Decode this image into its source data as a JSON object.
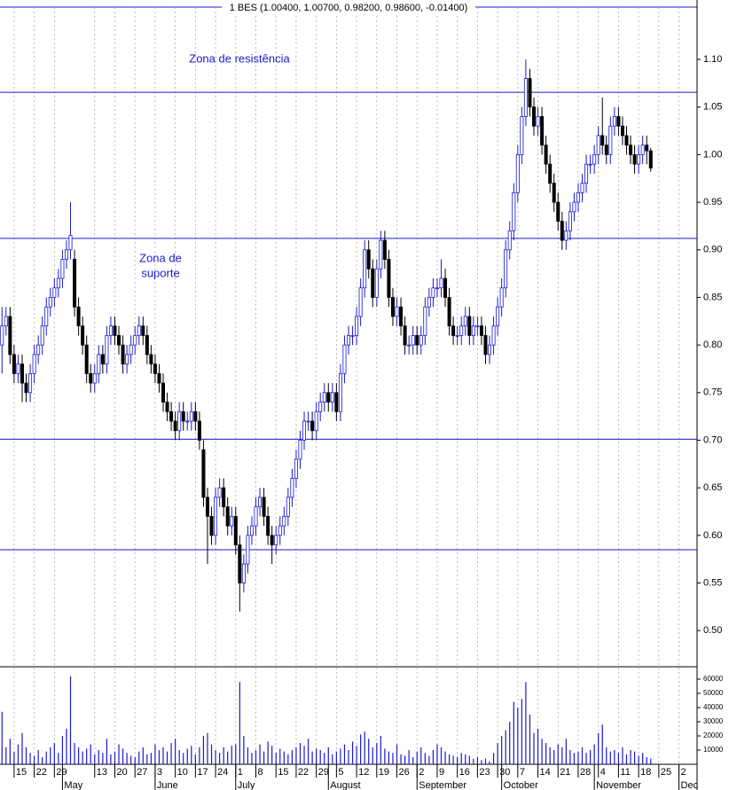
{
  "chart_data": {
    "type": "candlestick",
    "title": "1 BES (1.00400, 1.00700, 0.98200, 0.98600, -0.01400)",
    "annotations": [
      {
        "lines": [
          "Zona de resistência"
        ]
      },
      {
        "lines": [
          "Zona de",
          "suporte"
        ]
      }
    ],
    "categories": [
      null,
      null,
      null,
      "15",
      null,
      null,
      null,
      null,
      "22",
      null,
      null,
      null,
      null,
      "29",
      null,
      null,
      null,
      null,
      null,
      null,
      null,
      null,
      null,
      "13",
      null,
      null,
      null,
      null,
      "20",
      null,
      null,
      null,
      null,
      "27",
      null,
      null,
      null,
      null,
      "3",
      null,
      null,
      null,
      null,
      "10",
      null,
      null,
      null,
      null,
      "17",
      null,
      null,
      null,
      null,
      "24",
      null,
      null,
      null,
      null,
      "1",
      null,
      null,
      null,
      null,
      "8",
      null,
      null,
      null,
      null,
      "15",
      null,
      null,
      null,
      null,
      "22",
      null,
      null,
      null,
      null,
      "29",
      null,
      null,
      null,
      null,
      "5",
      null,
      null,
      null,
      null,
      "12",
      null,
      null,
      null,
      null,
      "19",
      null,
      null,
      null,
      null,
      "26",
      null,
      null,
      null,
      null,
      "2",
      null,
      null,
      null,
      null,
      "9",
      null,
      null,
      null,
      null,
      "16",
      null,
      null,
      null,
      null,
      "23",
      null,
      null,
      null,
      null,
      "30",
      null,
      null,
      null,
      null,
      "7",
      null,
      null,
      null,
      null,
      "14",
      null,
      null,
      null,
      null,
      "21",
      null,
      null,
      null,
      null,
      "28",
      null,
      null,
      null,
      null,
      "4",
      null,
      null,
      null,
      null,
      "11",
      null,
      null,
      null,
      null,
      "18",
      null,
      null,
      null,
      null,
      "25",
      null,
      null,
      null,
      null,
      "2",
      null,
      null,
      null,
      null
    ],
    "months": [
      null,
      null,
      null,
      null,
      null,
      null,
      null,
      null,
      null,
      null,
      null,
      null,
      null,
      null,
      null,
      "May",
      null,
      null,
      null,
      null,
      null,
      null,
      null,
      null,
      null,
      null,
      null,
      null,
      null,
      null,
      null,
      null,
      null,
      null,
      null,
      null,
      null,
      null,
      "June",
      null,
      null,
      null,
      null,
      null,
      null,
      null,
      null,
      null,
      null,
      null,
      null,
      null,
      null,
      null,
      null,
      null,
      null,
      null,
      "July",
      null,
      null,
      null,
      null,
      null,
      null,
      null,
      null,
      null,
      null,
      null,
      null,
      null,
      null,
      null,
      null,
      null,
      null,
      null,
      null,
      null,
      null,
      "August",
      null,
      null,
      null,
      null,
      null,
      null,
      null,
      null,
      null,
      null,
      null,
      null,
      null,
      null,
      null,
      null,
      null,
      null,
      null,
      null,
      null,
      "September",
      null,
      null,
      null,
      null,
      null,
      null,
      null,
      null,
      null,
      null,
      null,
      null,
      null,
      null,
      null,
      null,
      null,
      null,
      null,
      null,
      "October",
      null,
      null,
      null,
      null,
      null,
      null,
      null,
      null,
      null,
      null,
      null,
      null,
      null,
      null,
      null,
      null,
      null,
      null,
      null,
      null,
      null,
      null,
      "November",
      null,
      null,
      null,
      null,
      null,
      null,
      null,
      null,
      null,
      null,
      null,
      null,
      null,
      null,
      null,
      null,
      null,
      null,
      null,
      null,
      "Dec",
      null,
      null,
      null,
      null
    ],
    "open": [
      0.8,
      0.82,
      0.83,
      0.79,
      0.77,
      0.78,
      0.76,
      0.75,
      0.77,
      0.79,
      0.8,
      0.82,
      0.84,
      0.85,
      0.86,
      0.87,
      0.89,
      0.9,
      0.89,
      0.84,
      0.82,
      0.8,
      0.77,
      0.76,
      0.77,
      0.79,
      0.78,
      0.81,
      0.82,
      0.81,
      0.8,
      0.78,
      0.79,
      0.8,
      0.81,
      0.82,
      0.81,
      0.79,
      0.78,
      0.77,
      0.76,
      0.74,
      0.73,
      0.72,
      0.71,
      0.73,
      0.72,
      0.72,
      0.73,
      0.72,
      0.69,
      0.64,
      0.62,
      0.6,
      0.64,
      0.65,
      0.63,
      0.61,
      0.62,
      0.59,
      0.55,
      0.57,
      0.6,
      0.61,
      0.63,
      0.64,
      0.62,
      0.6,
      0.59,
      0.6,
      0.61,
      0.62,
      0.64,
      0.66,
      0.68,
      0.7,
      0.72,
      0.72,
      0.71,
      0.73,
      0.74,
      0.75,
      0.74,
      0.75,
      0.73,
      0.77,
      0.8,
      0.81,
      0.81,
      0.83,
      0.86,
      0.9,
      0.88,
      0.85,
      0.88,
      0.91,
      0.89,
      0.85,
      0.83,
      0.84,
      0.82,
      0.8,
      0.8,
      0.81,
      0.8,
      0.81,
      0.84,
      0.85,
      0.86,
      0.86,
      0.87,
      0.85,
      0.82,
      0.81,
      0.81,
      0.82,
      0.83,
      0.81,
      0.82,
      0.82,
      0.81,
      0.79,
      0.8,
      0.82,
      0.84,
      0.86,
      0.9,
      0.92,
      0.96,
      1.0,
      1.04,
      1.08,
      1.05,
      1.03,
      1.04,
      1.01,
      0.99,
      0.97,
      0.95,
      0.93,
      0.91,
      0.92,
      0.94,
      0.95,
      0.96,
      0.97,
      0.99,
      0.99,
      1.0,
      1.02,
      1.01,
      1.0,
      1.03,
      1.04,
      1.03,
      1.02,
      1.01,
      1.0,
      0.99,
      1.0,
      1.01,
      1.004,
      null,
      null,
      null,
      null,
      null,
      null,
      null,
      null,
      null,
      null,
      null
    ],
    "high": [
      0.84,
      0.84,
      0.84,
      0.8,
      0.79,
      0.79,
      0.77,
      0.78,
      0.8,
      0.81,
      0.83,
      0.85,
      0.86,
      0.87,
      0.88,
      0.9,
      0.91,
      0.95,
      0.9,
      0.85,
      0.83,
      0.81,
      0.78,
      0.78,
      0.8,
      0.8,
      0.82,
      0.83,
      0.83,
      0.82,
      0.81,
      0.8,
      0.81,
      0.82,
      0.83,
      0.83,
      0.82,
      0.8,
      0.79,
      0.78,
      0.77,
      0.75,
      0.74,
      0.73,
      0.74,
      0.74,
      0.73,
      0.74,
      0.74,
      0.73,
      0.7,
      0.65,
      0.63,
      0.65,
      0.66,
      0.66,
      0.64,
      0.63,
      0.63,
      0.6,
      0.58,
      0.61,
      0.62,
      0.64,
      0.65,
      0.65,
      0.63,
      0.61,
      0.61,
      0.62,
      0.63,
      0.65,
      0.67,
      0.69,
      0.71,
      0.73,
      0.73,
      0.73,
      0.74,
      0.75,
      0.76,
      0.76,
      0.76,
      0.76,
      0.78,
      0.81,
      0.82,
      0.82,
      0.84,
      0.87,
      0.91,
      0.91,
      0.89,
      0.89,
      0.92,
      0.92,
      0.9,
      0.86,
      0.85,
      0.85,
      0.83,
      0.81,
      0.82,
      0.82,
      0.82,
      0.85,
      0.86,
      0.87,
      0.87,
      0.89,
      0.88,
      0.86,
      0.83,
      0.82,
      0.83,
      0.84,
      0.84,
      0.83,
      0.83,
      0.83,
      0.82,
      0.81,
      0.83,
      0.85,
      0.87,
      0.91,
      0.93,
      0.97,
      1.01,
      1.05,
      1.1,
      1.09,
      1.06,
      1.05,
      1.05,
      1.02,
      1.0,
      0.98,
      0.96,
      0.94,
      0.93,
      0.95,
      0.96,
      0.97,
      0.98,
      1.0,
      1.0,
      1.01,
      1.03,
      1.06,
      1.02,
      1.04,
      1.05,
      1.05,
      1.04,
      1.03,
      1.02,
      1.01,
      1.01,
      1.02,
      1.02,
      1.007,
      null,
      null,
      null,
      null,
      null,
      null,
      null,
      null,
      null,
      null,
      null
    ],
    "low": [
      0.77,
      0.81,
      0.78,
      0.76,
      0.76,
      0.74,
      0.74,
      0.74,
      0.76,
      0.78,
      0.79,
      0.81,
      0.83,
      0.84,
      0.85,
      0.86,
      0.88,
      0.89,
      0.83,
      0.81,
      0.79,
      0.76,
      0.75,
      0.75,
      0.76,
      0.77,
      0.77,
      0.8,
      0.8,
      0.79,
      0.77,
      0.77,
      0.78,
      0.79,
      0.8,
      0.8,
      0.78,
      0.77,
      0.76,
      0.75,
      0.73,
      0.72,
      0.71,
      0.7,
      0.7,
      0.71,
      0.71,
      0.71,
      0.71,
      0.69,
      0.63,
      0.57,
      0.59,
      0.59,
      0.63,
      0.62,
      0.6,
      0.6,
      0.58,
      0.52,
      0.54,
      0.56,
      0.59,
      0.6,
      0.62,
      0.61,
      0.59,
      0.57,
      0.58,
      0.59,
      0.6,
      0.61,
      0.63,
      0.65,
      0.67,
      0.69,
      0.71,
      0.7,
      0.7,
      0.72,
      0.73,
      0.73,
      0.73,
      0.72,
      0.72,
      0.76,
      0.79,
      0.8,
      0.8,
      0.82,
      0.85,
      0.87,
      0.84,
      0.84,
      0.87,
      0.88,
      0.84,
      0.82,
      0.82,
      0.81,
      0.79,
      0.79,
      0.79,
      0.79,
      0.79,
      0.8,
      0.83,
      0.84,
      0.85,
      0.85,
      0.84,
      0.81,
      0.8,
      0.8,
      0.8,
      0.81,
      0.8,
      0.8,
      0.81,
      0.8,
      0.78,
      0.78,
      0.79,
      0.81,
      0.83,
      0.85,
      0.89,
      0.91,
      0.95,
      0.99,
      1.03,
      1.04,
      1.02,
      1.02,
      1.0,
      0.98,
      0.96,
      0.94,
      0.92,
      0.9,
      0.9,
      0.91,
      0.93,
      0.94,
      0.95,
      0.96,
      0.98,
      0.98,
      0.99,
      1.0,
      0.99,
      0.99,
      1.02,
      1.02,
      1.01,
      1.0,
      0.99,
      0.98,
      0.98,
      0.99,
      0.99,
      0.982,
      null,
      null,
      null,
      null,
      null,
      null,
      null,
      null,
      null,
      null,
      null
    ],
    "close": [
      0.82,
      0.83,
      0.79,
      0.77,
      0.78,
      0.76,
      0.75,
      0.77,
      0.79,
      0.8,
      0.82,
      0.84,
      0.85,
      0.86,
      0.87,
      0.89,
      0.9,
      0.915,
      0.84,
      0.82,
      0.8,
      0.77,
      0.76,
      0.77,
      0.79,
      0.78,
      0.81,
      0.82,
      0.81,
      0.8,
      0.78,
      0.79,
      0.8,
      0.81,
      0.82,
      0.81,
      0.79,
      0.78,
      0.77,
      0.76,
      0.74,
      0.73,
      0.72,
      0.71,
      0.73,
      0.72,
      0.72,
      0.73,
      0.72,
      0.7,
      0.64,
      0.62,
      0.6,
      0.64,
      0.65,
      0.63,
      0.61,
      0.62,
      0.59,
      0.55,
      0.57,
      0.6,
      0.61,
      0.63,
      0.64,
      0.62,
      0.6,
      0.59,
      0.6,
      0.61,
      0.62,
      0.64,
      0.66,
      0.68,
      0.7,
      0.72,
      0.72,
      0.71,
      0.73,
      0.74,
      0.75,
      0.74,
      0.75,
      0.73,
      0.77,
      0.8,
      0.81,
      0.81,
      0.83,
      0.86,
      0.9,
      0.88,
      0.85,
      0.88,
      0.91,
      0.89,
      0.85,
      0.83,
      0.84,
      0.82,
      0.8,
      0.8,
      0.81,
      0.8,
      0.81,
      0.84,
      0.85,
      0.86,
      0.86,
      0.87,
      0.85,
      0.82,
      0.81,
      0.81,
      0.82,
      0.83,
      0.81,
      0.82,
      0.82,
      0.81,
      0.79,
      0.8,
      0.82,
      0.84,
      0.86,
      0.9,
      0.92,
      0.96,
      1.0,
      1.04,
      1.08,
      1.05,
      1.03,
      1.04,
      1.01,
      0.99,
      0.97,
      0.95,
      0.93,
      0.91,
      0.92,
      0.94,
      0.95,
      0.96,
      0.97,
      0.99,
      0.99,
      1.0,
      1.02,
      1.01,
      1.0,
      1.03,
      1.04,
      1.03,
      1.02,
      1.01,
      1.0,
      0.99,
      1.0,
      1.01,
      1.004,
      0.986,
      null,
      null,
      null,
      null,
      null,
      null,
      null,
      null,
      null,
      null,
      null
    ],
    "volume": [
      37000,
      12000,
      18000,
      9000,
      14000,
      22000,
      12000,
      8000,
      6000,
      10000,
      5000,
      9000,
      12000,
      15000,
      8000,
      20000,
      25000,
      62000,
      15000,
      12000,
      9000,
      11000,
      14000,
      7000,
      10000,
      8000,
      18000,
      7000,
      9000,
      14000,
      11000,
      8000,
      6000,
      5000,
      9000,
      12000,
      7000,
      8000,
      14000,
      10000,
      12000,
      9000,
      15000,
      18000,
      10000,
      8000,
      11000,
      13000,
      7000,
      12000,
      20000,
      22000,
      14000,
      10000,
      8000,
      12000,
      9000,
      13000,
      14000,
      58000,
      20000,
      12000,
      8000,
      10000,
      14000,
      9000,
      16000,
      13000,
      8000,
      11000,
      9000,
      7000,
      10000,
      12000,
      15000,
      13000,
      18000,
      9000,
      11000,
      10000,
      8000,
      12000,
      7000,
      9000,
      11000,
      14000,
      10000,
      16000,
      13000,
      21000,
      23000,
      18000,
      12000,
      15000,
      20000,
      11000,
      9000,
      8000,
      14000,
      7000,
      6000,
      10000,
      5000,
      9000,
      12000,
      8000,
      6000,
      10000,
      14000,
      12000,
      9000,
      7000,
      6000,
      5000,
      8000,
      7000,
      6000,
      4000,
      5000,
      3000,
      4000,
      2000,
      8000,
      15000,
      20000,
      24000,
      30000,
      44000,
      40000,
      46000,
      58000,
      35000,
      22000,
      25000,
      18000,
      15000,
      12000,
      10000,
      14000,
      12000,
      18000,
      10000,
      8000,
      9000,
      12000,
      8000,
      10000,
      14000,
      22000,
      28000,
      12000,
      9000,
      10000,
      8000,
      12000,
      7000,
      10000,
      9000,
      6000,
      8000,
      5000,
      4000,
      null,
      null,
      null,
      null,
      null,
      null,
      null,
      null,
      null,
      null,
      null
    ],
    "ylim": [
      0.462,
      1.155
    ],
    "yticks": [
      {
        "value": 0.5,
        "label": "0.50"
      },
      0.55,
      {
        "value": 0.6,
        "label": "0.60"
      },
      0.65,
      {
        "value": 0.7,
        "label": "0.70"
      },
      0.75,
      {
        "value": 0.8,
        "label": "0.80"
      },
      0.85,
      {
        "value": 0.9,
        "label": "0.90"
      },
      0.95,
      {
        "value": 1,
        "label": "1.00"
      },
      1.05,
      {
        "value": 1.1,
        "label": "1.10"
      }
    ],
    "volume_ylim": [
      0,
      68750
    ],
    "volume_yticks": [
      10000,
      20000,
      30000,
      40000,
      50000,
      60000
    ],
    "hlines": [
      1.0655,
      0.912,
      0.701,
      0.585
    ],
    "hline_color": "#1a1acc",
    "up_color": "#ffffff",
    "up_line_color": "#1a1acc",
    "down_color": "#000000",
    "volume_color": "#1a1acc",
    "grid": true
  }
}
